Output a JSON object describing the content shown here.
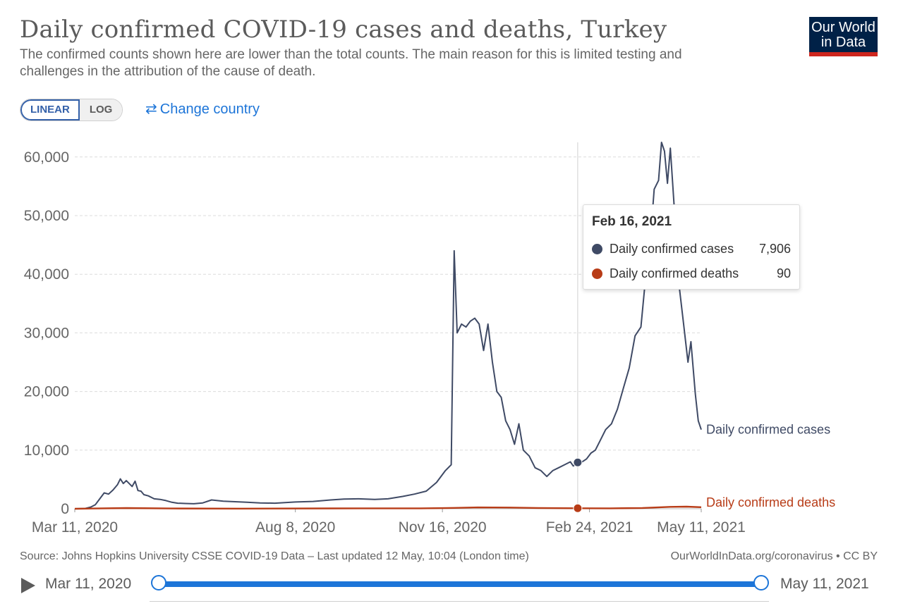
{
  "title": "Daily confirmed COVID-19 cases and deaths, Turkey",
  "subtitle": "The confirmed counts shown here are lower than the total counts. The main reason for this is limited testing and challenges in the attribution of the cause of death.",
  "logo": {
    "line1": "Our World",
    "line2": "in Data"
  },
  "controls": {
    "linear_label": "LINEAR",
    "log_label": "LOG",
    "change_country_label": "Change country",
    "active_scale": "linear"
  },
  "tooltip": {
    "date": "Feb 16, 2021",
    "rows": [
      {
        "name": "Daily confirmed cases",
        "value": "7,906",
        "color": "#3f4a65"
      },
      {
        "name": "Daily confirmed deaths",
        "value": "90",
        "color": "#b83c17"
      }
    ]
  },
  "footer": {
    "source": "Source: Johns Hopkins University CSSE COVID-19 Data – Last updated 12 May, 10:04 (London time)",
    "link": "OurWorldInData.org/coronavirus • CC BY"
  },
  "timeline": {
    "start_label": "Mar 11, 2020",
    "end_label": "May 11, 2021"
  },
  "chart_data": {
    "type": "line",
    "title": "Daily confirmed COVID-19 cases and deaths, Turkey",
    "ylim": [
      0,
      62500
    ],
    "y_ticks": [
      0,
      10000,
      20000,
      30000,
      40000,
      50000,
      60000
    ],
    "y_tick_labels": [
      "0",
      "10,000",
      "20,000",
      "30,000",
      "40,000",
      "50,000",
      "60,000"
    ],
    "x_ticks": [
      "2020-03-11",
      "2020-08-08",
      "2020-11-16",
      "2021-02-24",
      "2021-05-11"
    ],
    "x_tick_labels": [
      "Mar 11, 2020",
      "Aug 8, 2020",
      "Nov 16, 2020",
      "Feb 24, 2021",
      "May 11, 2021"
    ],
    "xlim": [
      "2020-03-11",
      "2021-05-11"
    ],
    "grid": "horizontal-dashed",
    "hover_date": "2021-02-16",
    "series": [
      {
        "name": "Daily confirmed cases",
        "color": "#3f4a65",
        "points": [
          [
            "2020-03-11",
            1
          ],
          [
            "2020-03-18",
            50
          ],
          [
            "2020-03-22",
            300
          ],
          [
            "2020-03-25",
            700
          ],
          [
            "2020-03-28",
            1700
          ],
          [
            "2020-03-31",
            2700
          ],
          [
            "2020-04-03",
            2500
          ],
          [
            "2020-04-06",
            3200
          ],
          [
            "2020-04-09",
            4100
          ],
          [
            "2020-04-11",
            5100
          ],
          [
            "2020-04-13",
            4300
          ],
          [
            "2020-04-15",
            4800
          ],
          [
            "2020-04-17",
            4300
          ],
          [
            "2020-04-19",
            3800
          ],
          [
            "2020-04-21",
            4700
          ],
          [
            "2020-04-23",
            3100
          ],
          [
            "2020-04-25",
            3000
          ],
          [
            "2020-04-27",
            2400
          ],
          [
            "2020-04-30",
            2200
          ],
          [
            "2020-05-04",
            1700
          ],
          [
            "2020-05-08",
            1600
          ],
          [
            "2020-05-12",
            1400
          ],
          [
            "2020-05-16",
            1100
          ],
          [
            "2020-05-20",
            950
          ],
          [
            "2020-05-25",
            900
          ],
          [
            "2020-05-31",
            850
          ],
          [
            "2020-06-06",
            1000
          ],
          [
            "2020-06-12",
            1500
          ],
          [
            "2020-06-20",
            1300
          ],
          [
            "2020-06-28",
            1200
          ],
          [
            "2020-07-06",
            1100
          ],
          [
            "2020-07-15",
            1000
          ],
          [
            "2020-07-25",
            950
          ],
          [
            "2020-08-08",
            1150
          ],
          [
            "2020-08-20",
            1250
          ],
          [
            "2020-09-01",
            1500
          ],
          [
            "2020-09-10",
            1650
          ],
          [
            "2020-09-20",
            1700
          ],
          [
            "2020-10-01",
            1600
          ],
          [
            "2020-10-10",
            1700
          ],
          [
            "2020-10-20",
            2100
          ],
          [
            "2020-10-28",
            2500
          ],
          [
            "2020-11-05",
            3000
          ],
          [
            "2020-11-12",
            4500
          ],
          [
            "2020-11-18",
            6500
          ],
          [
            "2020-11-22",
            7500
          ],
          [
            "2020-11-24",
            44000
          ],
          [
            "2020-11-26",
            30000
          ],
          [
            "2020-11-29",
            31500
          ],
          [
            "2020-12-02",
            31000
          ],
          [
            "2020-12-05",
            32000
          ],
          [
            "2020-12-08",
            32500
          ],
          [
            "2020-12-11",
            31500
          ],
          [
            "2020-12-14",
            27000
          ],
          [
            "2020-12-17",
            31500
          ],
          [
            "2020-12-20",
            25000
          ],
          [
            "2020-12-23",
            20000
          ],
          [
            "2020-12-26",
            19000
          ],
          [
            "2020-12-29",
            15000
          ],
          [
            "2021-01-01",
            13500
          ],
          [
            "2021-01-04",
            11000
          ],
          [
            "2021-01-07",
            14500
          ],
          [
            "2021-01-10",
            10000
          ],
          [
            "2021-01-14",
            9000
          ],
          [
            "2021-01-18",
            7000
          ],
          [
            "2021-01-22",
            6500
          ],
          [
            "2021-01-26",
            5500
          ],
          [
            "2021-01-30",
            6500
          ],
          [
            "2021-02-03",
            7000
          ],
          [
            "2021-02-07",
            7500
          ],
          [
            "2021-02-11",
            8000
          ],
          [
            "2021-02-13",
            7300
          ],
          [
            "2021-02-16",
            7906
          ],
          [
            "2021-02-19",
            8000
          ],
          [
            "2021-02-22",
            8500
          ],
          [
            "2021-02-25",
            9500
          ],
          [
            "2021-02-28",
            10000
          ],
          [
            "2021-03-03",
            11500
          ],
          [
            "2021-03-07",
            13500
          ],
          [
            "2021-03-11",
            14500
          ],
          [
            "2021-03-15",
            17000
          ],
          [
            "2021-03-19",
            20500
          ],
          [
            "2021-03-23",
            24000
          ],
          [
            "2021-03-27",
            29500
          ],
          [
            "2021-03-31",
            31000
          ],
          [
            "2021-04-03",
            39000
          ],
          [
            "2021-04-06",
            44500
          ],
          [
            "2021-04-09",
            54500
          ],
          [
            "2021-04-12",
            56000
          ],
          [
            "2021-04-14",
            62500
          ],
          [
            "2021-04-16",
            61000
          ],
          [
            "2021-04-18",
            55500
          ],
          [
            "2021-04-20",
            61500
          ],
          [
            "2021-04-23",
            50000
          ],
          [
            "2021-04-26",
            38000
          ],
          [
            "2021-04-29",
            31500
          ],
          [
            "2021-05-02",
            25000
          ],
          [
            "2021-05-04",
            28500
          ],
          [
            "2021-05-07",
            19500
          ],
          [
            "2021-05-09",
            15000
          ],
          [
            "2021-05-11",
            13500
          ]
        ]
      },
      {
        "name": "Daily confirmed deaths",
        "color": "#b83c17",
        "points": [
          [
            "2020-03-11",
            0
          ],
          [
            "2020-04-15",
            120
          ],
          [
            "2020-05-15",
            45
          ],
          [
            "2020-07-01",
            20
          ],
          [
            "2020-09-01",
            55
          ],
          [
            "2020-11-01",
            75
          ],
          [
            "2020-11-24",
            140
          ],
          [
            "2020-12-10",
            230
          ],
          [
            "2021-01-01",
            200
          ],
          [
            "2021-01-20",
            130
          ],
          [
            "2021-02-16",
            90
          ],
          [
            "2021-03-10",
            70
          ],
          [
            "2021-04-01",
            130
          ],
          [
            "2021-04-20",
            320
          ],
          [
            "2021-05-01",
            360
          ],
          [
            "2021-05-11",
            270
          ]
        ]
      }
    ]
  }
}
